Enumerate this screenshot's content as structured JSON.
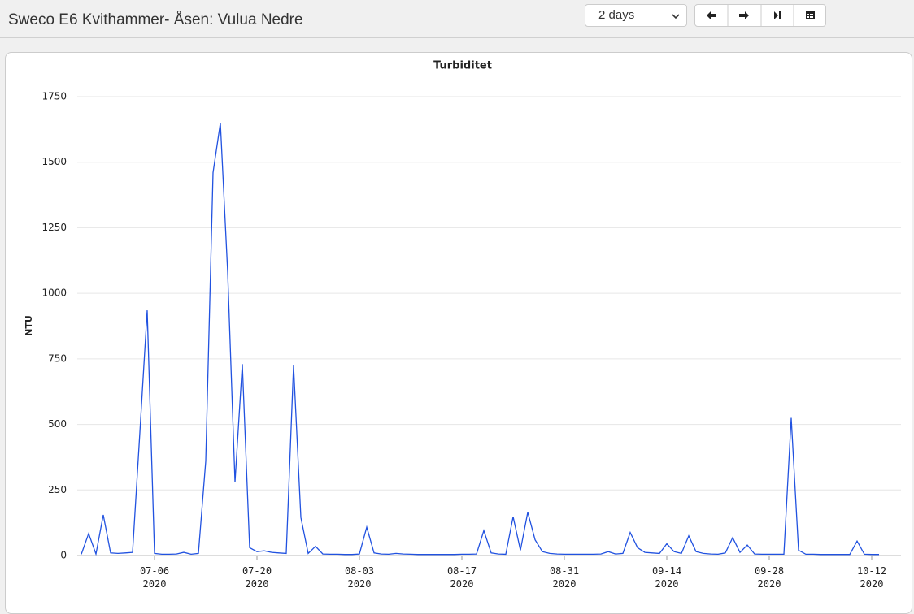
{
  "header": {
    "title": "Sweco E6 Kvithammer- Åsen: Vulua Nedre",
    "period": "2 days"
  },
  "chart_data": {
    "type": "line",
    "title": "Turbiditet",
    "y_label": "NTU",
    "color": "#2152e0",
    "grid": true,
    "x": [
      "2020-06-26",
      "2020-06-27",
      "2020-06-28",
      "2020-06-29",
      "2020-06-30",
      "2020-07-01",
      "2020-07-02",
      "2020-07-03",
      "2020-07-04",
      "2020-07-05",
      "2020-07-06",
      "2020-07-07",
      "2020-07-08",
      "2020-07-09",
      "2020-07-10",
      "2020-07-11",
      "2020-07-12",
      "2020-07-13",
      "2020-07-14",
      "2020-07-15",
      "2020-07-16",
      "2020-07-17",
      "2020-07-18",
      "2020-07-19",
      "2020-07-20",
      "2020-07-21",
      "2020-07-22",
      "2020-07-23",
      "2020-07-24",
      "2020-07-25",
      "2020-07-26",
      "2020-07-27",
      "2020-07-28",
      "2020-07-29",
      "2020-07-30",
      "2020-07-31",
      "2020-08-01",
      "2020-08-02",
      "2020-08-03",
      "2020-08-04",
      "2020-08-05",
      "2020-08-06",
      "2020-08-07",
      "2020-08-08",
      "2020-08-09",
      "2020-08-10",
      "2020-08-11",
      "2020-08-12",
      "2020-08-13",
      "2020-08-14",
      "2020-08-15",
      "2020-08-16",
      "2020-08-17",
      "2020-08-18",
      "2020-08-19",
      "2020-08-20",
      "2020-08-21",
      "2020-08-22",
      "2020-08-23",
      "2020-08-24",
      "2020-08-25",
      "2020-08-26",
      "2020-08-27",
      "2020-08-28",
      "2020-08-29",
      "2020-08-30",
      "2020-08-31",
      "2020-09-01",
      "2020-09-02",
      "2020-09-03",
      "2020-09-04",
      "2020-09-05",
      "2020-09-06",
      "2020-09-07",
      "2020-09-08",
      "2020-09-09",
      "2020-09-10",
      "2020-09-11",
      "2020-09-12",
      "2020-09-13",
      "2020-09-14",
      "2020-09-15",
      "2020-09-16",
      "2020-09-17",
      "2020-09-18",
      "2020-09-19",
      "2020-09-20",
      "2020-09-21",
      "2020-09-22",
      "2020-09-23",
      "2020-09-24",
      "2020-09-25",
      "2020-09-26",
      "2020-09-27",
      "2020-09-28",
      "2020-09-29",
      "2020-09-30",
      "2020-10-01",
      "2020-10-02",
      "2020-10-03",
      "2020-10-04",
      "2020-10-05",
      "2020-10-06",
      "2020-10-07",
      "2020-10-08",
      "2020-10-09",
      "2020-10-10",
      "2020-10-11",
      "2020-10-12",
      "2020-10-13"
    ],
    "values": [
      5,
      84,
      6,
      155,
      10,
      8,
      10,
      12,
      470,
      935,
      8,
      5,
      5,
      6,
      12,
      5,
      8,
      360,
      1460,
      1650,
      1080,
      280,
      730,
      30,
      15,
      18,
      12,
      10,
      8,
      725,
      145,
      8,
      35,
      6,
      5,
      5,
      4,
      4,
      6,
      108,
      10,
      6,
      5,
      8,
      6,
      5,
      4,
      4,
      4,
      4,
      4,
      4,
      5,
      5,
      6,
      95,
      10,
      6,
      5,
      148,
      20,
      165,
      60,
      15,
      8,
      6,
      5,
      5,
      5,
      5,
      5,
      6,
      15,
      6,
      8,
      88,
      30,
      12,
      10,
      8,
      45,
      15,
      8,
      75,
      15,
      8,
      6,
      5,
      10,
      68,
      12,
      40,
      6,
      5,
      5,
      5,
      5,
      525,
      20,
      5,
      5,
      4,
      4,
      4,
      4,
      4,
      55,
      5,
      4,
      4
    ],
    "xlim": [
      "2020-06-26",
      "2020-10-16"
    ],
    "xticks": [
      {
        "value": "2020-07-06",
        "label": "07-06\n2020"
      },
      {
        "value": "2020-07-20",
        "label": "07-20\n2020"
      },
      {
        "value": "2020-08-03",
        "label": "08-03\n2020"
      },
      {
        "value": "2020-08-17",
        "label": "08-17\n2020"
      },
      {
        "value": "2020-08-31",
        "label": "08-31\n2020"
      },
      {
        "value": "2020-09-14",
        "label": "09-14\n2020"
      },
      {
        "value": "2020-09-28",
        "label": "09-28\n2020"
      },
      {
        "value": "2020-10-12",
        "label": "10-12\n2020"
      }
    ],
    "ylim": [
      0,
      1750
    ],
    "yticks": [
      0,
      250,
      500,
      750,
      1000,
      1250,
      1500,
      1750
    ]
  }
}
